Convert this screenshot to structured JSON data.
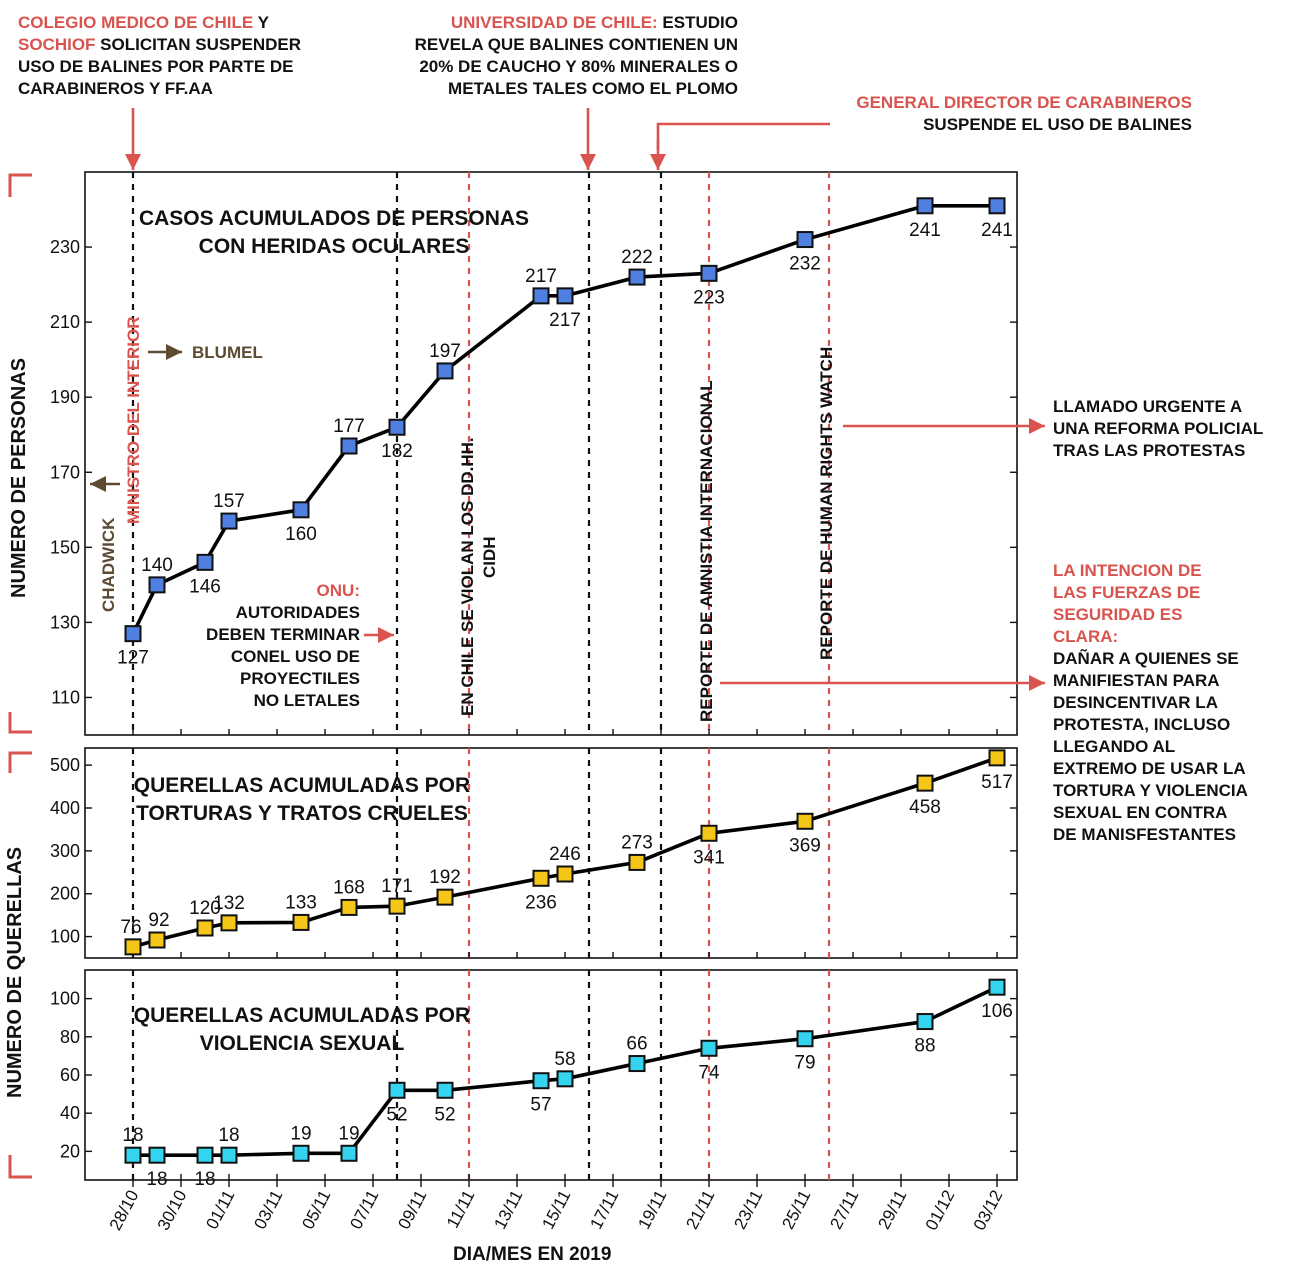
{
  "chart_data": [
    {
      "type": "line",
      "title": "CASOS ACUMULADOS DE PERSONAS CON HERIDAS OCULARES",
      "title_lines": [
        "CASOS ACUMULADOS DE PERSONAS",
        "CON HERIDAS OCULARES"
      ],
      "ylabel": "NUMERO DE PERSONAS",
      "ylim": [
        100,
        250
      ],
      "yticks": [
        110,
        130,
        150,
        170,
        190,
        210,
        230
      ],
      "marker_color": "#4f7fe0",
      "x": [
        "28/10",
        "29/10",
        "31/10",
        "01/11",
        "04/11",
        "06/11",
        "08/11",
        "10/11",
        "14/11",
        "15/11",
        "18/11",
        "21/11",
        "25/11",
        "30/11",
        "03/12"
      ],
      "values": [
        127,
        140,
        146,
        157,
        160,
        177,
        182,
        197,
        217,
        217,
        222,
        223,
        232,
        241,
        241
      ],
      "data_labels": [
        "127",
        "140",
        "146",
        "157",
        "160",
        "177",
        "182",
        "197",
        "217",
        "217",
        "222",
        "223",
        "232",
        "241",
        "241"
      ]
    },
    {
      "type": "line",
      "title": "QUERELLAS ACUMULADAS POR TORTURAS Y TRATOS CRUELES",
      "title_lines": [
        "QUERELLAS ACUMULADAS POR",
        "TORTURAS Y TRATOS CRUELES"
      ],
      "ylabel": "NUMERO DE QUERELLAS",
      "ylim": [
        50,
        540
      ],
      "yticks": [
        100,
        200,
        300,
        400,
        500
      ],
      "marker_color": "#f5c518",
      "x": [
        "28/10",
        "29/10",
        "31/10",
        "01/11",
        "04/11",
        "06/11",
        "08/11",
        "10/11",
        "14/11",
        "15/11",
        "18/11",
        "21/11",
        "25/11",
        "30/11",
        "03/12"
      ],
      "values": [
        76,
        92,
        120,
        132,
        133,
        168,
        171,
        192,
        236,
        246,
        273,
        341,
        369,
        458,
        517
      ],
      "data_labels": [
        "76",
        "92",
        "120",
        "132",
        "133",
        "168",
        "171",
        "192",
        "236",
        "246",
        "273",
        "341",
        "369",
        "458",
        "517"
      ]
    },
    {
      "type": "line",
      "title": "QUERELLAS ACUMULADAS POR VIOLENCIA SEXUAL",
      "title_lines": [
        "QUERELLAS ACUMULADAS POR",
        "VIOLENCIA SEXUAL"
      ],
      "ylim": [
        5,
        115
      ],
      "yticks": [
        20,
        40,
        60,
        80,
        100
      ],
      "marker_color": "#34d4ee",
      "x": [
        "28/10",
        "29/10",
        "31/10",
        "01/11",
        "04/11",
        "06/11",
        "08/11",
        "10/11",
        "14/11",
        "15/11",
        "18/11",
        "21/11",
        "25/11",
        "30/11",
        "03/12"
      ],
      "values": [
        18,
        18,
        18,
        18,
        19,
        19,
        52,
        52,
        57,
        58,
        66,
        74,
        79,
        88,
        106
      ],
      "data_labels": [
        "18",
        "18",
        "18",
        "18",
        "19",
        "19",
        "52",
        "52",
        "57",
        "58",
        "66",
        "74",
        "79",
        "88",
        "106"
      ]
    }
  ],
  "x_axis": {
    "label": "DIA/MES EN 2019",
    "ticks": [
      "28/10",
      "30/10",
      "01/11",
      "03/11",
      "05/11",
      "07/11",
      "09/11",
      "11/11",
      "13/11",
      "15/11",
      "17/11",
      "19/11",
      "21/11",
      "23/11",
      "25/11",
      "27/11",
      "29/11",
      "01/12",
      "03/12"
    ]
  },
  "event_lines": [
    {
      "date": "28/10",
      "style": "black"
    },
    {
      "date": "08/11",
      "style": "black"
    },
    {
      "date": "11/11",
      "style": "red"
    },
    {
      "date": "16/11",
      "style": "black"
    },
    {
      "date": "19/11",
      "style": "black"
    },
    {
      "date": "21/11",
      "style": "red"
    },
    {
      "date": "26/11",
      "style": "red"
    }
  ],
  "annotations": {
    "colmed_red1": "COLEGIO MEDICO DE CHILE",
    "colmed_b1": " Y",
    "colmed_red2": "SOCHIOF",
    "colmed_b2": " SOLICITAN SUSPENDER",
    "colmed_l3": "USO DE BALINES POR PARTE DE",
    "colmed_l4": "CARABINEROS Y FF.AA",
    "uchile_red": "UNIVERSIDAD DE CHILE:",
    "uchile_b1": " ESTUDIO",
    "uchile_l2": "REVELA QUE BALINES CONTIENEN UN",
    "uchile_l3": "20% DE CAUCHO Y 80% MINERALES O",
    "uchile_l4": "METALES TALES COMO EL PLOMO",
    "general_red": "GENERAL DIRECTOR DE CARABINEROS",
    "general_l2": "SUSPENDE EL USO DE BALINES",
    "ministro": "MINISTRO DEL INTERIOR",
    "blumel": "BLUMEL",
    "chadwick": "CHADWICK",
    "onu_red": "ONU:",
    "onu_lines": [
      "AUTORIDADES",
      "DEBEN TERMINAR",
      "CONEL USO DE",
      "PROYECTILES",
      "NO LETALES"
    ],
    "cidh_l1": "EN CHILE SE VIOLAN LOS DD.HH.",
    "cidh_l2": "CIDH",
    "amnistia": "REPORTE DE AMNISTIA INTERNACIONAL",
    "hrw": "REPORTE DE HUMAN RIGHTS WATCH",
    "llamado_lines": [
      "LLAMADO URGENTE A",
      "UNA REFORMA POLICIAL",
      "TRAS LAS PROTESTAS"
    ],
    "intencion_red_lines": [
      "LA INTENCION DE",
      "LAS FUERZAS DE",
      "SEGURIDAD ES",
      "CLARA:"
    ],
    "intencion_lines": [
      "DAÑAR A QUIENES SE",
      "MANIFIESTAN PARA",
      "DESINCENTIVAR LA",
      "PROTESTA, INCLUSO",
      "LLEGANDO AL",
      "EXTREMO DE USAR LA",
      "TORTURA Y VIOLENCIA",
      "SEXUAL EN CONTRA",
      "DE MANISFESTANTES"
    ]
  },
  "colors": {
    "accent_red": "#d9534f",
    "brown": "#5c4a33",
    "line": "#000000"
  }
}
